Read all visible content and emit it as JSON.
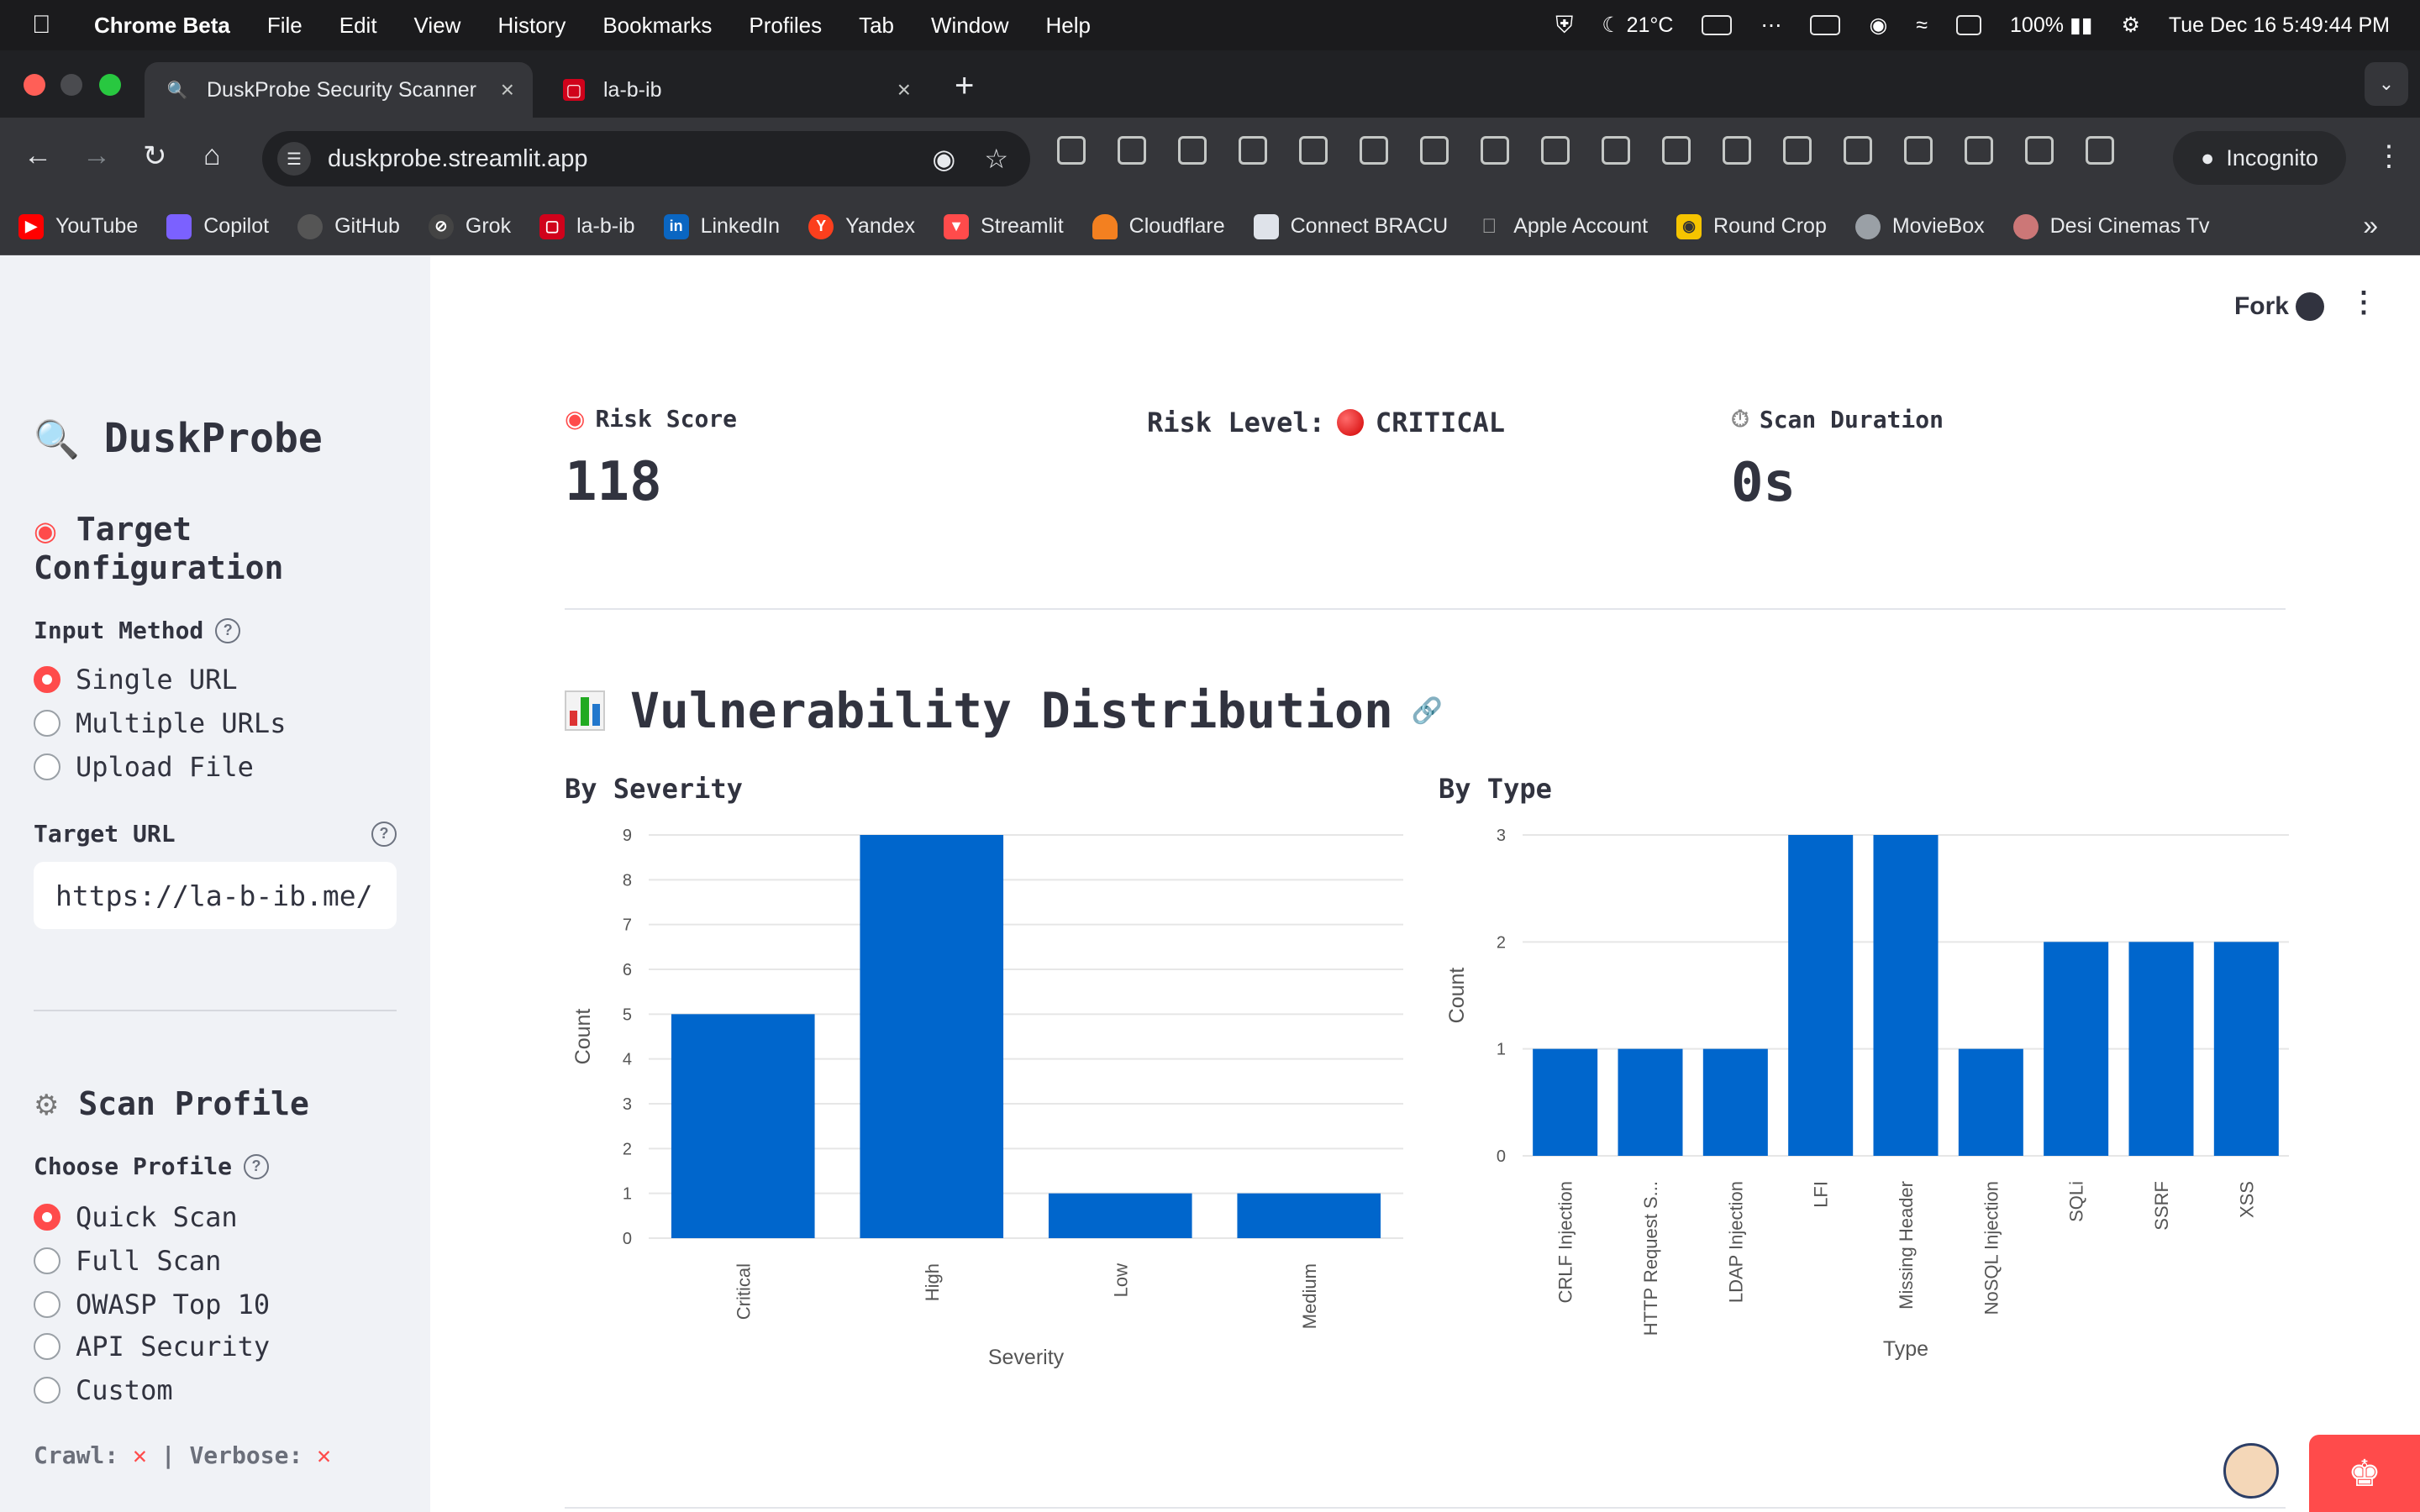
{
  "menubar": {
    "app": "Chrome Beta",
    "items": [
      "File",
      "Edit",
      "View",
      "History",
      "Bookmarks",
      "Profiles",
      "Tab",
      "Window",
      "Help"
    ],
    "weather": "21°C",
    "battery": "100%",
    "datetime": "Tue Dec 16  5:49:44 PM"
  },
  "tabs": [
    {
      "title": "DuskProbe Security Scanner",
      "active": true
    },
    {
      "title": "la-b-ib",
      "active": false
    }
  ],
  "omnibox": {
    "url": "duskprobe.streamlit.app"
  },
  "incognito_label": "Incognito",
  "bookmarks": [
    {
      "label": "YouTube",
      "icon": "youtube-icon",
      "color": "#ff0000"
    },
    {
      "label": "Copilot",
      "icon": "copilot-icon",
      "color": "#7b61ff"
    },
    {
      "label": "GitHub",
      "icon": "github-icon",
      "color": "#555555"
    },
    {
      "label": "Grok",
      "icon": "grok-icon",
      "color": "#444444"
    },
    {
      "label": "la-b-ib",
      "icon": "la-b-ib-icon",
      "color": "#d0021b"
    },
    {
      "label": "LinkedIn",
      "icon": "linkedin-icon",
      "color": "#0a66c2"
    },
    {
      "label": "Yandex",
      "icon": "yandex-icon",
      "color": "#fc3f1d"
    },
    {
      "label": "Streamlit",
      "icon": "streamlit-icon",
      "color": "#ff4b4b"
    },
    {
      "label": "Cloudflare",
      "icon": "cloudflare-icon",
      "color": "#f38020"
    },
    {
      "label": "Connect BRACU",
      "icon": "bracu-icon",
      "color": "#dfe3ea"
    },
    {
      "label": "Apple Account",
      "icon": "apple-icon",
      "color": "#8e8e93"
    },
    {
      "label": "Round Crop",
      "icon": "camera-icon",
      "color": "#f5c400"
    },
    {
      "label": "MovieBox",
      "icon": "moviebox-icon",
      "color": "#9aa0a6"
    },
    {
      "label": "Desi Cinemas Tv",
      "icon": "desi-cinemas-icon",
      "color": "#c77"
    }
  ],
  "sidebar": {
    "title": "DuskProbe",
    "target_heading_line1": "Target",
    "target_heading_line2": "Configuration",
    "input_method_label": "Input Method",
    "input_methods": [
      "Single URL",
      "Multiple URLs",
      "Upload File"
    ],
    "input_method_selected": "Single URL",
    "target_url_label": "Target URL",
    "target_url_value": "https://la-b-ib.me/",
    "scan_profile_heading": "Scan Profile",
    "choose_profile_label": "Choose Profile",
    "profiles": [
      "Quick Scan",
      "Full Scan",
      "OWASP Top 10",
      "API Security",
      "Custom"
    ],
    "profile_selected": "Quick Scan",
    "crawl_label": "Crawl:",
    "verbose_label": "| Verbose:",
    "cross_mark": "✕"
  },
  "header": {
    "fork": "Fork"
  },
  "metrics": {
    "risk_score_label": "Risk Score",
    "risk_score_value": "118",
    "risk_level_label": "Risk Level:",
    "risk_level_value": "CRITICAL",
    "scan_duration_label": "Scan Duration",
    "scan_duration_value": "0s"
  },
  "section_title": "Vulnerability Distribution",
  "colors": {
    "accent": "#ff4b4b",
    "bar": "#0066cc"
  },
  "chart_data": [
    {
      "type": "bar",
      "title": "By Severity",
      "categories": [
        "Critical",
        "High",
        "Low",
        "Medium"
      ],
      "values": [
        5,
        9,
        1,
        1
      ],
      "xlabel": "Severity",
      "ylabel": "Count",
      "yticks": [
        0,
        1,
        2,
        3,
        4,
        5,
        6,
        7,
        8,
        9
      ],
      "ylim": [
        0,
        9
      ],
      "grid": true
    },
    {
      "type": "bar",
      "title": "By Type",
      "categories": [
        "CRLF Injection",
        "HTTP Request S...",
        "LDAP Injection",
        "LFI",
        "Missing Header",
        "NoSQL Injection",
        "SQLi",
        "SSRF",
        "XSS"
      ],
      "values": [
        1,
        1,
        1,
        3,
        3,
        1,
        2,
        2,
        2
      ],
      "xlabel": "Type",
      "ylabel": "Count",
      "yticks": [
        0,
        1,
        2,
        3
      ],
      "ylim": [
        0,
        3
      ],
      "grid": true
    }
  ]
}
